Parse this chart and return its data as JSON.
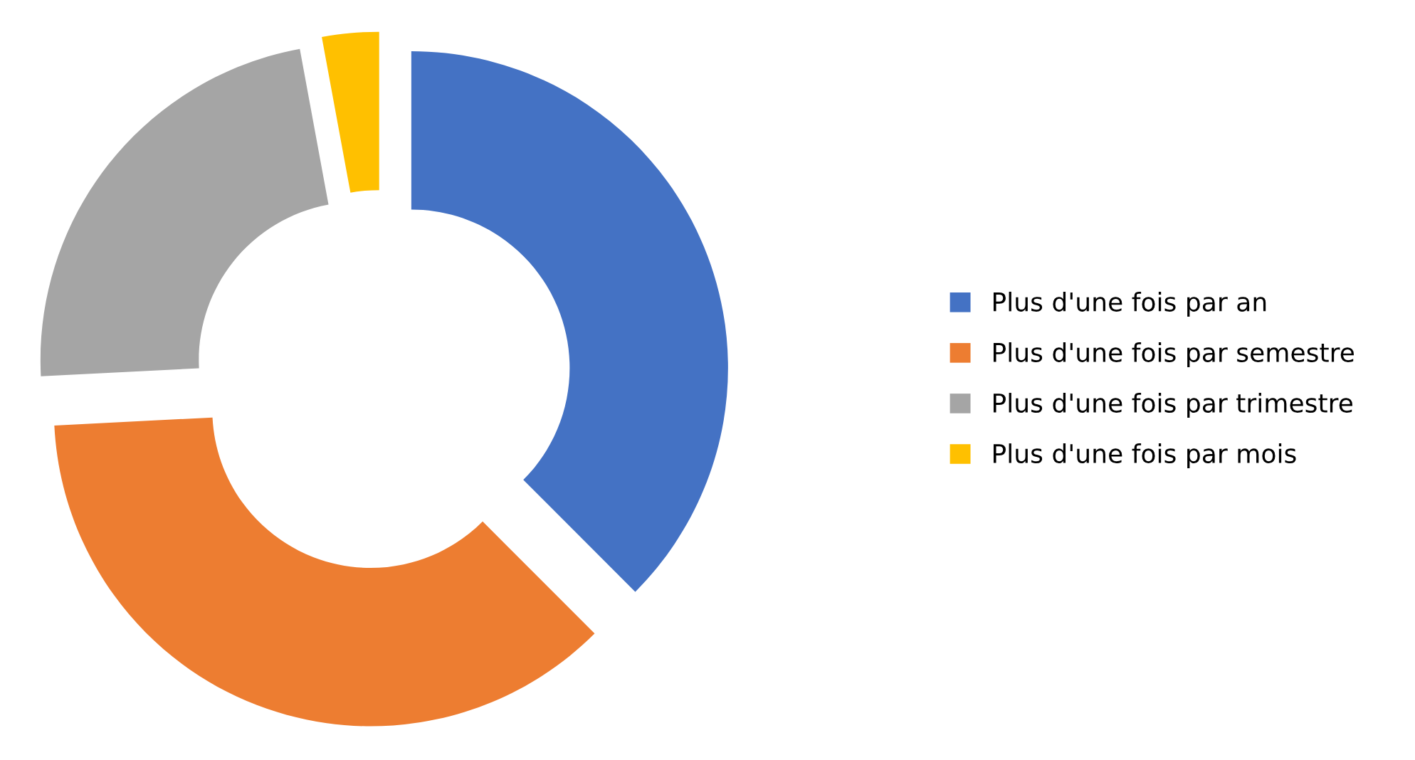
{
  "chart_data": {
    "type": "donut",
    "categories": [
      "Plus d'une fois par an",
      "Plus d'une fois par semestre",
      "Plus d'une fois par trimestre",
      "Plus d'une fois par mois"
    ],
    "values": [
      37.5,
      36.7,
      22.9,
      2.9
    ],
    "colors": [
      "#4472c4",
      "#ed7d31",
      "#a5a5a5",
      "#ffc000"
    ],
    "legend": "right"
  }
}
